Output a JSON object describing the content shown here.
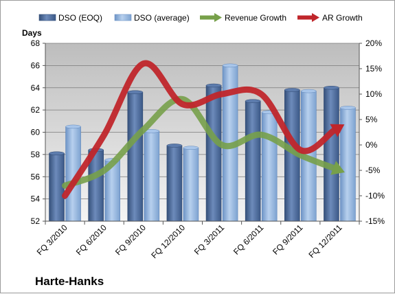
{
  "chart_data": {
    "type": "bar",
    "title": "",
    "company": "Harte-Hanks",
    "left_axis": {
      "title": "Days",
      "min": 52,
      "max": 68,
      "step": 2
    },
    "right_axis": {
      "min": -15,
      "max": 20,
      "step": 5,
      "format": "percent"
    },
    "categories": [
      "FQ 3/2010",
      "FQ 6/2010",
      "FQ 9/2010",
      "FQ 12/2010",
      "FQ 3/2011",
      "FQ 6/2011",
      "FQ 9/2011",
      "FQ 12/2011"
    ],
    "bar_series": [
      {
        "name": "DSO (EOQ)",
        "axis": "left",
        "color": "#4a6a9a",
        "values": [
          58.1,
          58.4,
          63.6,
          58.8,
          64.2,
          62.8,
          63.8,
          64.0
        ]
      },
      {
        "name": "DSO (average)",
        "axis": "left",
        "color": "#8fb1d9",
        "values": [
          60.5,
          57.5,
          60.1,
          58.6,
          66.0,
          61.8,
          63.7,
          62.2
        ]
      }
    ],
    "line_series": [
      {
        "name": "Revenue Growth",
        "axis": "right",
        "color": "#77a04a",
        "values": [
          -8,
          -5,
          3,
          9,
          0,
          2,
          -2,
          -5
        ]
      },
      {
        "name": "AR Growth",
        "axis": "right",
        "color": "#c0262b",
        "values": [
          -10,
          2,
          16,
          8,
          10,
          10,
          -1,
          3.5
        ]
      }
    ],
    "grid": true,
    "legend_position": "top"
  }
}
